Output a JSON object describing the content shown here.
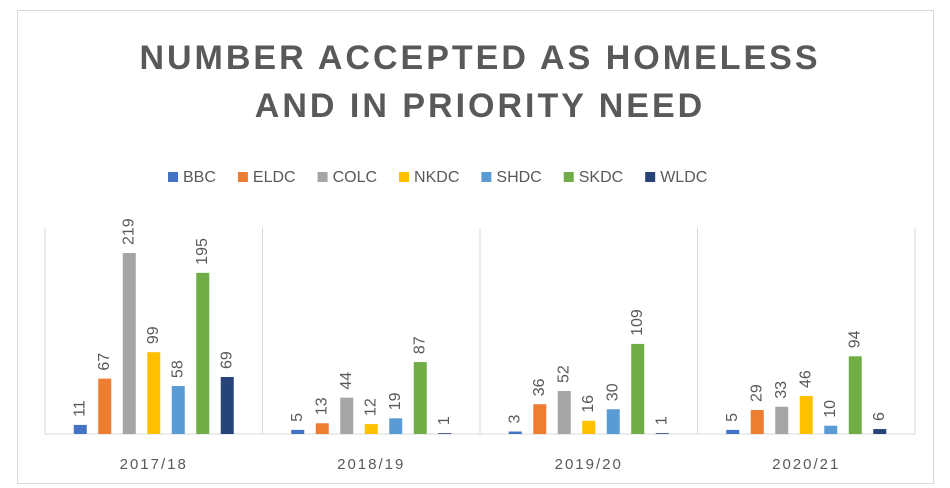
{
  "chart_data": {
    "type": "bar",
    "title": "NUMBER ACCEPTED AS HOMELESS AND IN PRIORITY NEED",
    "categories": [
      "2017/18",
      "2018/19",
      "2019/20",
      "2020/21"
    ],
    "series": [
      {
        "name": "BBC",
        "color": "#4472c4",
        "values": [
          11,
          5,
          3,
          5
        ]
      },
      {
        "name": "ELDC",
        "color": "#ed7d31",
        "values": [
          67,
          13,
          36,
          29
        ]
      },
      {
        "name": "COLC",
        "color": "#a5a5a5",
        "values": [
          219,
          44,
          52,
          33
        ]
      },
      {
        "name": "NKDC",
        "color": "#ffc000",
        "values": [
          99,
          12,
          16,
          46
        ]
      },
      {
        "name": "SHDC",
        "color": "#5b9bd5",
        "values": [
          58,
          19,
          30,
          10
        ]
      },
      {
        "name": "SKDC",
        "color": "#70ad47",
        "values": [
          195,
          87,
          109,
          94
        ]
      },
      {
        "name": "WLDC",
        "color": "#264478",
        "values": [
          69,
          1,
          1,
          6
        ]
      }
    ],
    "legend": "top"
  }
}
